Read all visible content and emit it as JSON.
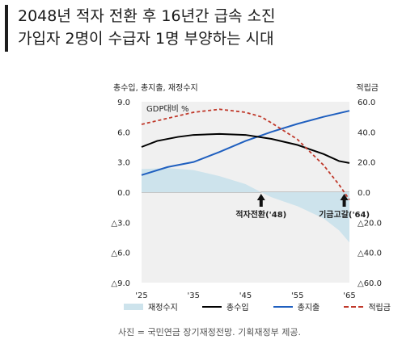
{
  "header": {
    "title_line1": "2048년 적자 전환 후 16년간 급속 소진",
    "title_line2": "가입자 2명이 수급자 1명 부양하는 시대"
  },
  "axis": {
    "left_title": "총수입, 총지출, 재정수지",
    "right_title": "적립금",
    "unit_note": "GDP대비 %"
  },
  "annotations": {
    "deficit": "적자전환('48)",
    "depletion": "기금고갈('64)"
  },
  "legend": {
    "balance": "재정수지",
    "revenue": "총수입",
    "expenditure": "총지출",
    "reserve": "적립금"
  },
  "source": "사진 = 국민연금 장기재정전망. 기획재정부 제공.",
  "colors": {
    "balance": "#cde3ec",
    "revenue": "#000000",
    "expenditure": "#1f5fbf",
    "reserve": "#c0392b",
    "plot_bg": "#f0f0f0"
  },
  "chart_data": {
    "type": "line",
    "xlim": [
      2025,
      2065
    ],
    "x_ticks": [
      "'25",
      "'35",
      "'45",
      "'55",
      "'65"
    ],
    "x_tick_values": [
      2025,
      2035,
      2045,
      2055,
      2065
    ],
    "left_axis": {
      "ylim": [
        -9,
        9
      ],
      "ticks": [
        "9.0",
        "6.0",
        "3.0",
        "0.0",
        "△3.0",
        "△6.0",
        "△9.0"
      ],
      "tick_values": [
        9,
        6,
        3,
        0,
        -3,
        -6,
        -9
      ]
    },
    "right_axis": {
      "ylim": [
        -60,
        60
      ],
      "ticks": [
        "60.0",
        "40.0",
        "20.0",
        "0.0",
        "△20.0",
        "△40.0",
        "△60.0"
      ],
      "tick_values": [
        60,
        40,
        20,
        0,
        -20,
        -40,
        -60
      ]
    },
    "series": [
      {
        "name": "재정수지",
        "style": "area",
        "x": [
          2025,
          2030,
          2035,
          2040,
          2045,
          2048,
          2050,
          2055,
          2060,
          2063,
          2065
        ],
        "values": [
          2.3,
          2.4,
          2.2,
          1.6,
          0.8,
          0.0,
          -0.5,
          -1.4,
          -2.6,
          -3.8,
          -5.0
        ]
      },
      {
        "name": "총수입",
        "style": "line",
        "x": [
          2025,
          2028,
          2030,
          2032,
          2035,
          2040,
          2045,
          2050,
          2055,
          2060,
          2063,
          2065
        ],
        "values": [
          4.5,
          5.1,
          5.3,
          5.5,
          5.7,
          5.8,
          5.7,
          5.3,
          4.7,
          3.8,
          3.1,
          2.9
        ]
      },
      {
        "name": "총지출",
        "style": "line",
        "x": [
          2025,
          2030,
          2035,
          2040,
          2045,
          2050,
          2055,
          2060,
          2065
        ],
        "values": [
          1.7,
          2.5,
          3.0,
          4.0,
          5.1,
          6.0,
          6.8,
          7.5,
          8.1
        ]
      },
      {
        "name": "적립금",
        "style": "dashed",
        "axis": "right",
        "x": [
          2025,
          2030,
          2035,
          2040,
          2045,
          2048,
          2050,
          2055,
          2060,
          2063,
          2065
        ],
        "values": [
          45,
          49,
          53,
          55,
          53,
          50,
          46,
          35,
          18,
          5,
          -5
        ]
      }
    ],
    "markers": [
      {
        "label": "적자전환('48)",
        "x": 2048
      },
      {
        "label": "기금고갈('64)",
        "x": 2064
      }
    ]
  }
}
